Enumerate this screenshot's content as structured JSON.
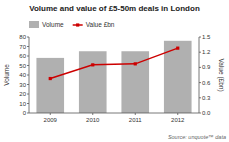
{
  "chart_data": {
    "type": "bar",
    "title": "Volume and value of £5-50m deals in London",
    "categories": [
      "2009",
      "2010",
      "2011",
      "2012"
    ],
    "series": [
      {
        "name": "Volume",
        "type": "bar",
        "color": "#b0b0b0",
        "values": [
          58,
          65,
          65,
          76
        ]
      },
      {
        "name": "Value £bn",
        "type": "line",
        "axis": "y2",
        "color": "#cc0000",
        "marker": "square",
        "values": [
          0.68,
          0.95,
          0.97,
          1.28
        ]
      }
    ],
    "ylabel": "Volume",
    "y2label": "Value (£bn)",
    "ylim": [
      0,
      80
    ],
    "yticks": [
      0,
      10,
      20,
      30,
      40,
      50,
      60,
      70,
      80
    ],
    "y2lim": [
      0,
      1.5
    ],
    "y2ticks": [
      {
        "value": 0,
        "label": "0.0"
      },
      0.3,
      0.6,
      0.9,
      1.2,
      1.5
    ],
    "legend": "top-left",
    "grid": false,
    "annotations": [
      "Source: unquote™ data"
    ]
  }
}
